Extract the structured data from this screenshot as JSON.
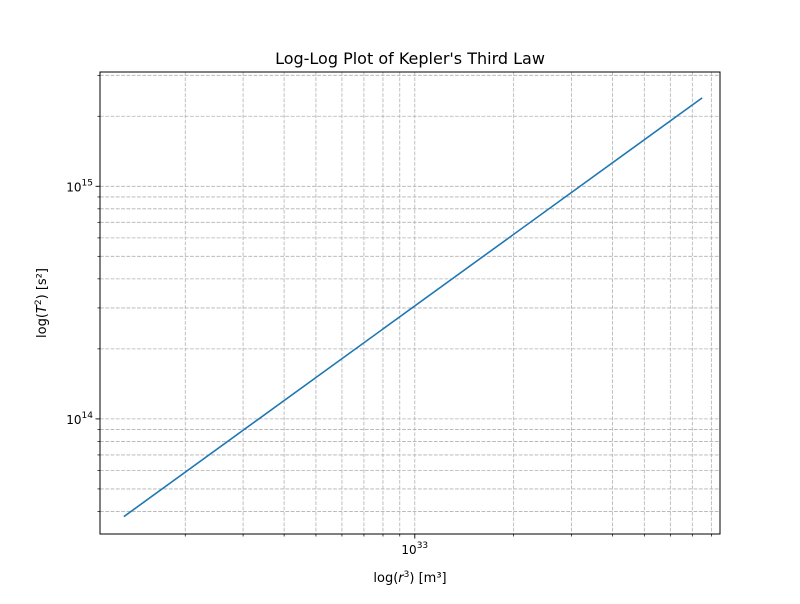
{
  "chart_data": {
    "type": "line",
    "title": "Log-Log Plot of Kepler's Third Law",
    "xlabel": "log(r³) [m³]",
    "ylabel": "log(T²) [s²]",
    "xscale": "log",
    "yscale": "log",
    "xlim": [
      1.1e+32,
      8.5e+33
    ],
    "ylim": [
      32000000000000.0,
      3100000000000000.0
    ],
    "grid": true,
    "grid_style": "dashed",
    "x_ticks": [
      {
        "value": 1e+33,
        "base": "10",
        "exponent": "33"
      }
    ],
    "y_ticks": [
      {
        "value": 100000000000000.0,
        "base": "10",
        "exponent": "14"
      },
      {
        "value": 1000000000000000.0,
        "base": "10",
        "exponent": "15"
      }
    ],
    "series": [
      {
        "color": "#1f77b4",
        "x": [
          1.3e+32,
          7.5e+33
        ],
        "y": [
          38000000000000.0,
          2400000000000000.0
        ]
      }
    ]
  }
}
